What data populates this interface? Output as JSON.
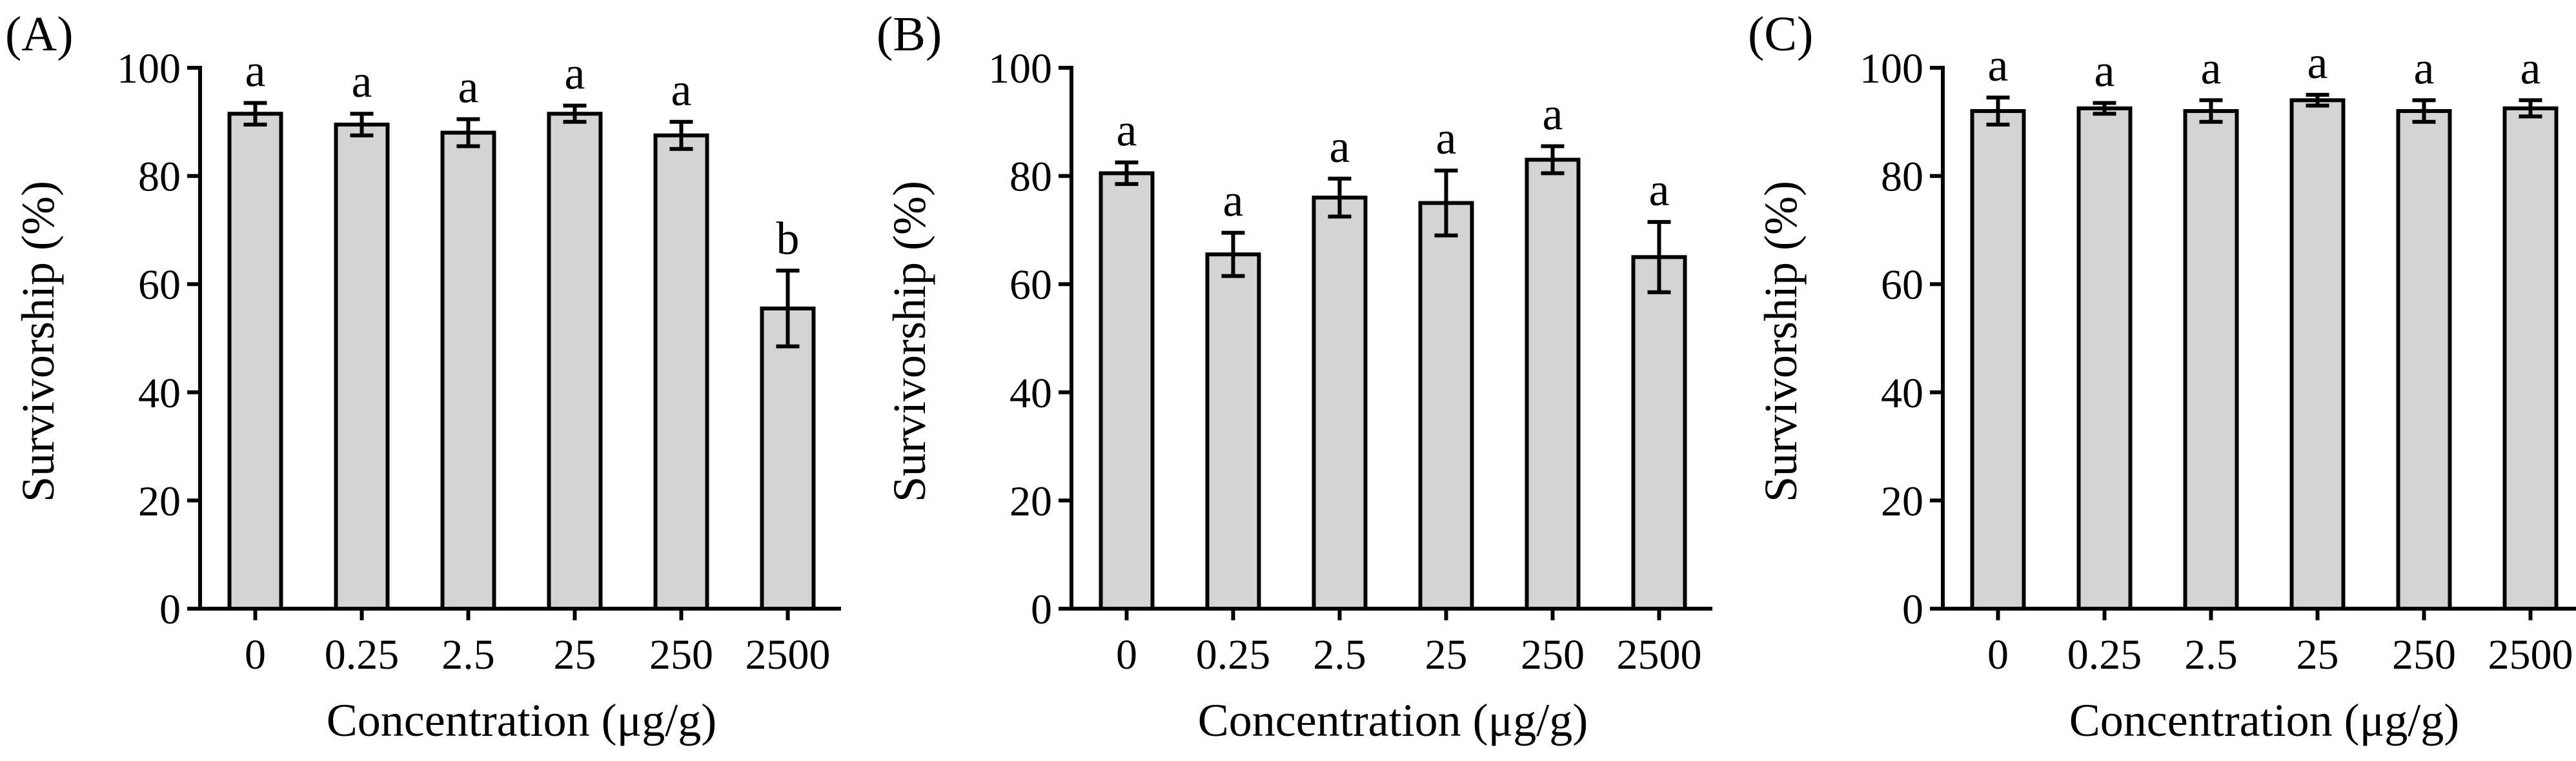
{
  "chart_data": [
    {
      "type": "bar",
      "panel_label": "(A)",
      "xlabel": "Concentration (μg/g)",
      "ylabel": "Survivorship (%)",
      "ylim": [
        0,
        100
      ],
      "yticks": [
        "0",
        "20",
        "40",
        "60",
        "80",
        "100"
      ],
      "categories": [
        "0",
        "0.25",
        "2.5",
        "25",
        "250",
        "2500"
      ],
      "values": [
        91.5,
        89.5,
        88,
        91.5,
        87.5,
        55.5
      ],
      "errors": [
        2,
        2,
        2.5,
        1.5,
        2.5,
        7
      ],
      "significance": [
        "a",
        "a",
        "a",
        "a",
        "a",
        "b"
      ]
    },
    {
      "type": "bar",
      "panel_label": "(B)",
      "xlabel": "Concentration (μg/g)",
      "ylabel": "Survivorship (%)",
      "ylim": [
        0,
        100
      ],
      "yticks": [
        "0",
        "20",
        "40",
        "60",
        "80",
        "100"
      ],
      "categories": [
        "0",
        "0.25",
        "2.5",
        "25",
        "250",
        "2500"
      ],
      "values": [
        80.5,
        65.5,
        76,
        75,
        83,
        65
      ],
      "errors": [
        2,
        4,
        3.5,
        6,
        2.5,
        6.5
      ],
      "significance": [
        "a",
        "a",
        "a",
        "a",
        "a",
        "a"
      ]
    },
    {
      "type": "bar",
      "panel_label": "(C)",
      "xlabel": "Concentration (μg/g)",
      "ylabel": "Survivorship (%)",
      "ylim": [
        0,
        100
      ],
      "yticks": [
        "0",
        "20",
        "40",
        "60",
        "80",
        "100"
      ],
      "categories": [
        "0",
        "0.25",
        "2.5",
        "25",
        "250",
        "2500"
      ],
      "values": [
        92,
        92.5,
        92,
        94,
        92,
        92.5
      ],
      "errors": [
        2.5,
        1,
        2,
        1,
        2,
        1.5
      ],
      "significance": [
        "a",
        "a",
        "a",
        "a",
        "a",
        "a"
      ]
    }
  ],
  "colors": {
    "bar_fill": "#d4d4d4",
    "stroke": "#000000"
  }
}
